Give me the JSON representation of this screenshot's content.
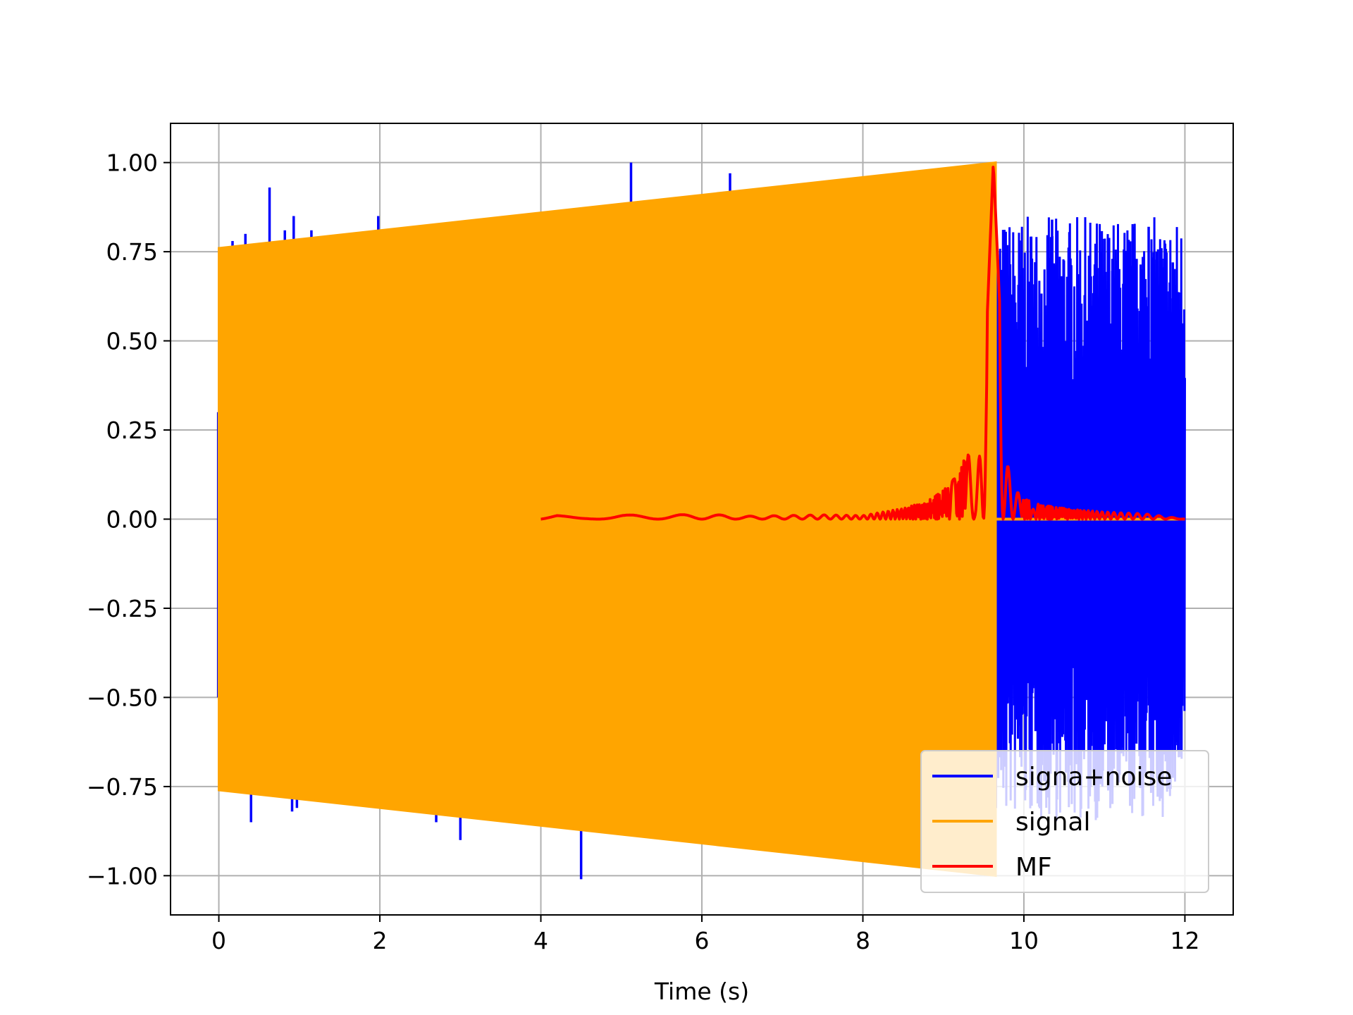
{
  "chart_data": {
    "type": "line",
    "xlabel": "Time (s)",
    "ylabel": "",
    "xlim": [
      -0.6,
      12.6
    ],
    "ylim": [
      -1.11,
      1.11
    ],
    "x_ticks": [
      0,
      2,
      4,
      6,
      8,
      10,
      12
    ],
    "x_tick_labels": [
      "0",
      "2",
      "4",
      "6",
      "8",
      "10",
      "12"
    ],
    "y_ticks": [
      1.0,
      0.75,
      0.5,
      0.25,
      0.0,
      -0.25,
      -0.5,
      -0.75,
      -1.0
    ],
    "y_tick_labels": [
      "1.00",
      "0.75",
      "0.50",
      "0.25",
      "0.00",
      "−0.25",
      "−0.50",
      "−0.75",
      "−1.00"
    ],
    "grid": true,
    "legend_position": "lower-right",
    "series": [
      {
        "name": "signa+noise",
        "color": "#0000ff",
        "style": "noisy chirp plus noise",
        "envelope": {
          "t": [
            0,
            9.65
          ],
          "amp": [
            0.76,
            1.0
          ]
        },
        "noise_tail": {
          "t_start": 9.65,
          "t_end": 12.0,
          "typical_amp": 0.5
        },
        "spikes": [
          {
            "x": 0.17,
            "y": 0.78
          },
          {
            "x": 0.33,
            "y": 0.8
          },
          {
            "x": 0.63,
            "y": 0.93
          },
          {
            "x": 0.82,
            "y": 0.81
          },
          {
            "x": 0.93,
            "y": 0.85
          },
          {
            "x": 1.15,
            "y": 0.81
          },
          {
            "x": 1.98,
            "y": 0.85
          },
          {
            "x": 3.07,
            "y": 0.83
          },
          {
            "x": 3.12,
            "y": 0.82
          },
          {
            "x": 5.12,
            "y": 1.0
          },
          {
            "x": 5.22,
            "y": 0.87
          },
          {
            "x": 6.35,
            "y": 0.97
          },
          {
            "x": 0.4,
            "y": -0.85
          },
          {
            "x": 0.91,
            "y": -0.82
          },
          {
            "x": 0.97,
            "y": -0.81
          },
          {
            "x": 1.35,
            "y": -0.79
          },
          {
            "x": 2.7,
            "y": -0.85
          },
          {
            "x": 3.0,
            "y": -0.9
          },
          {
            "x": 3.1,
            "y": -0.82
          },
          {
            "x": 4.5,
            "y": -1.01
          }
        ],
        "tail_peaks": [
          {
            "x": 10.35,
            "y": 0.84
          },
          {
            "x": 11.55,
            "y": 0.82
          },
          {
            "x": 11.65,
            "y": 0.75
          },
          {
            "x": 11.1,
            "y": 0.73
          },
          {
            "x": 11.4,
            "y": 0.73
          },
          {
            "x": 10.15,
            "y": 0.65
          },
          {
            "x": 10.45,
            "y": 0.66
          },
          {
            "x": 11.85,
            "y": 0.72
          },
          {
            "x": 10.9,
            "y": -0.72
          },
          {
            "x": 11.75,
            "y": -0.66
          },
          {
            "x": 10.7,
            "y": -0.68
          },
          {
            "x": 11.45,
            "y": -0.64
          }
        ]
      },
      {
        "name": "signal",
        "color": "#ffa500",
        "style": "chirp, rendered as filled envelope",
        "envelope": {
          "t": [
            0,
            9.65
          ],
          "amp": [
            0.76,
            1.0
          ]
        },
        "after": {
          "t": [
            9.65,
            12.0
          ],
          "value": 0.0
        }
      },
      {
        "name": "MF",
        "color": "#ff0000",
        "style": "matched filter output",
        "peak": {
          "x": 9.62,
          "y": 1.0
        },
        "x": [
          4.0,
          4.2,
          4.5,
          5.0,
          5.5,
          6.0,
          6.5,
          7.0,
          7.5,
          8.0,
          8.5,
          8.8,
          9.0,
          9.2,
          9.3,
          9.4,
          9.5,
          9.55,
          9.62,
          9.7,
          9.75,
          9.8,
          9.9,
          10.0,
          10.2,
          10.5,
          11.0,
          11.5,
          12.0
        ],
        "y": [
          0.0,
          0.01,
          0.005,
          0.012,
          0.01,
          0.015,
          0.008,
          0.01,
          0.012,
          0.01,
          0.03,
          0.05,
          0.08,
          0.13,
          0.2,
          0.05,
          0.34,
          0.6,
          1.0,
          0.6,
          0.2,
          0.15,
          0.08,
          0.06,
          0.04,
          0.03,
          0.02,
          0.015,
          0.0
        ]
      }
    ]
  }
}
